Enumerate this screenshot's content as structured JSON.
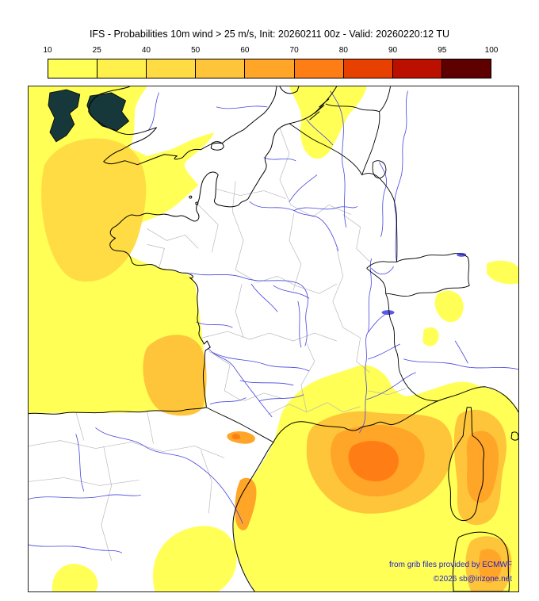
{
  "page": {
    "title": "IFS - Probabilities 10m wind > 25 m/s, Init: 20260211 00z - Valid: 20260220:12 TU"
  },
  "colorbar": {
    "ticks": [
      "10",
      "25",
      "40",
      "50",
      "60",
      "70",
      "80",
      "90",
      "95",
      "100"
    ],
    "cells": [
      "#ffff55",
      "#fff04c",
      "#ffdc44",
      "#ffc53a",
      "#ffa527",
      "#ff7d15",
      "#e84000",
      "#bb0f00",
      "#5e0000"
    ]
  },
  "map": {
    "colors": {
      "coast": "#000000",
      "department": "#b9b9b9",
      "river": "#4545e0",
      "lake": "#5a5ae8",
      "p1": "#ffff55",
      "p3": "#ffdc44",
      "p4": "#ffc53a",
      "p5": "#ffa527",
      "p6": "#ff7d15",
      "dark": "#16383a",
      "credit": "#2121cc"
    },
    "credits": {
      "line1": "from grib files provided by ECMWF",
      "line2": "©2026 sb@irizone.net"
    }
  }
}
